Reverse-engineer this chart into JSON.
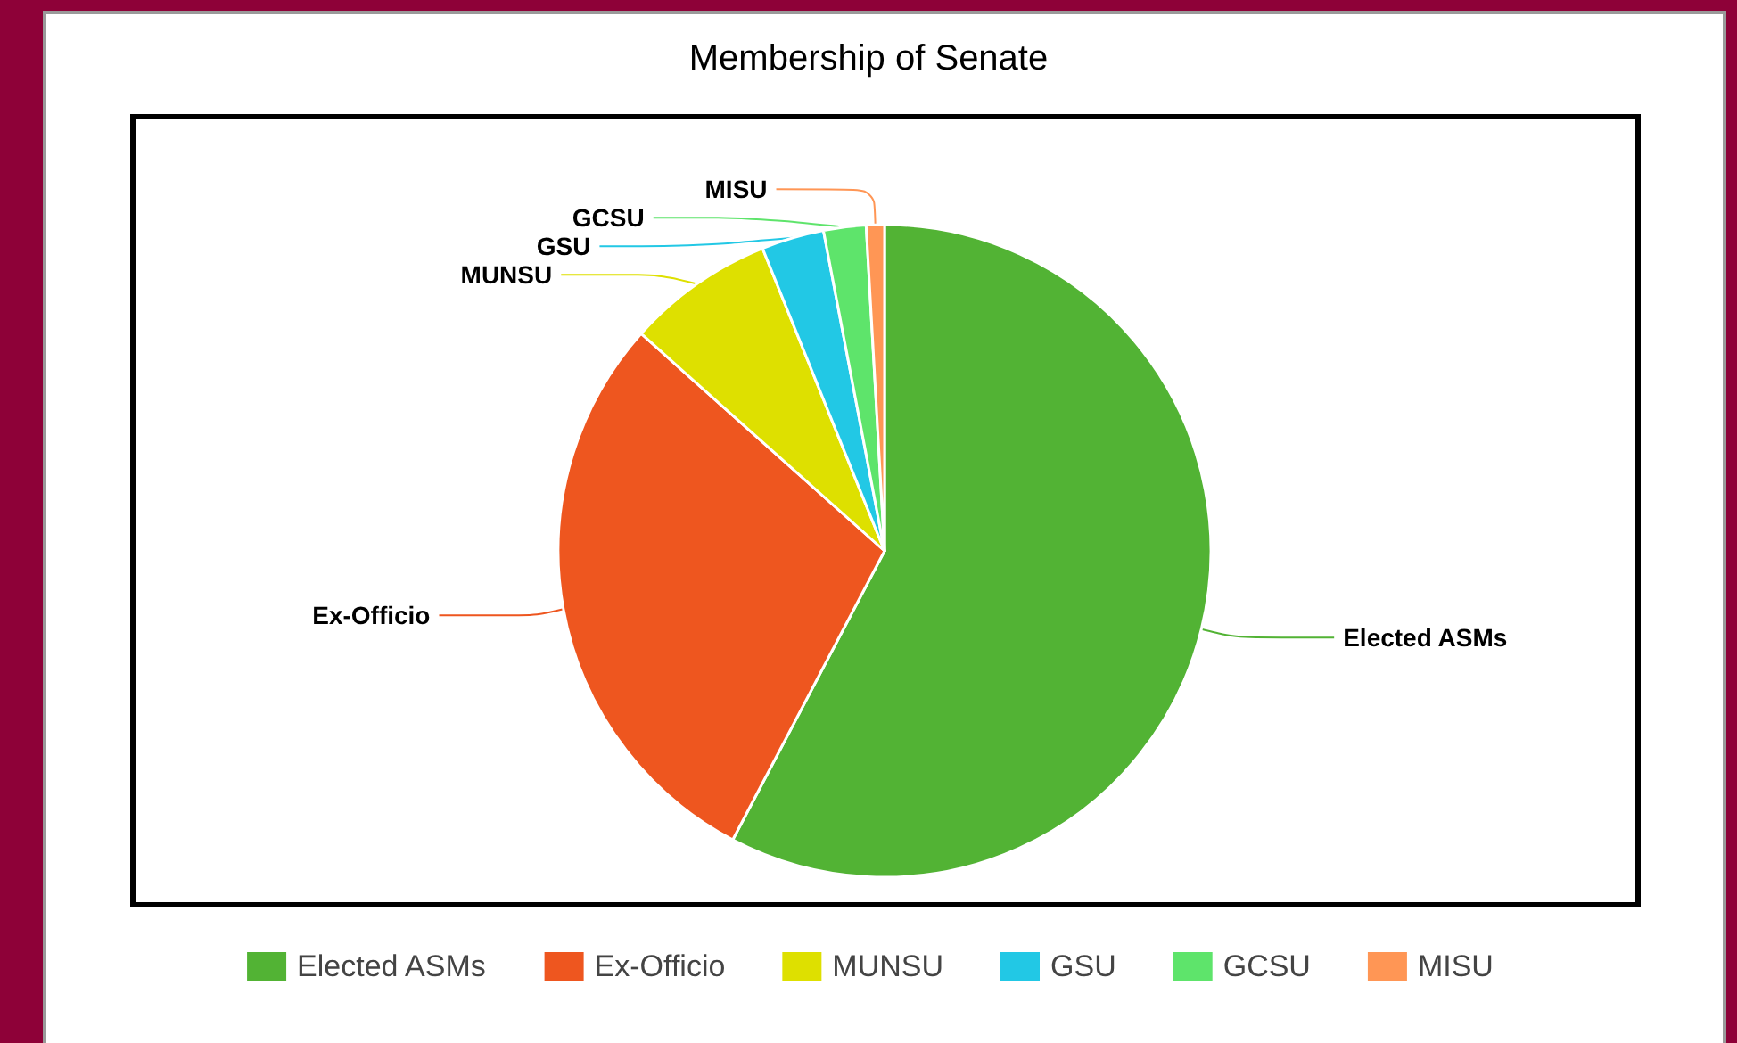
{
  "chart_data": {
    "type": "pie",
    "title": "Membership of Senate",
    "categories": [
      "Elected ASMs",
      "Ex-Officio",
      "MUNSU",
      "GSU",
      "GCSU",
      "MISU"
    ],
    "values": [
      57.7,
      28.9,
      7.3,
      3.1,
      2.1,
      0.9
    ],
    "colors": [
      "#52b334",
      "#ee561f",
      "#dee000",
      "#22c8e5",
      "#5ee46b",
      "#ff9655"
    ],
    "legend": "bottom"
  }
}
